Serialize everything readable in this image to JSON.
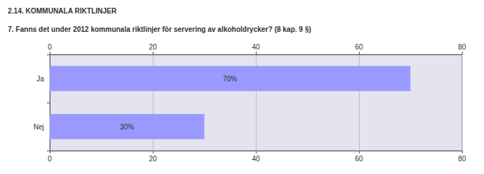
{
  "chart_data": {
    "type": "bar",
    "orientation": "horizontal",
    "title": "2.14. KOMMUNALA RIKTLINJER",
    "subtitle": "7. Fanns det under 2012 kommunala riktlinjer för servering av alkoholdrycker? (8 kap. 9 §)",
    "categories": [
      "Ja",
      "Nej"
    ],
    "values": [
      70,
      30
    ],
    "value_labels": [
      "70%",
      "30%"
    ],
    "data_labels": true,
    "color": "#9999ff",
    "xlim": [
      0,
      80
    ],
    "xticks": [
      0,
      20,
      40,
      60,
      80
    ],
    "grid": true
  }
}
